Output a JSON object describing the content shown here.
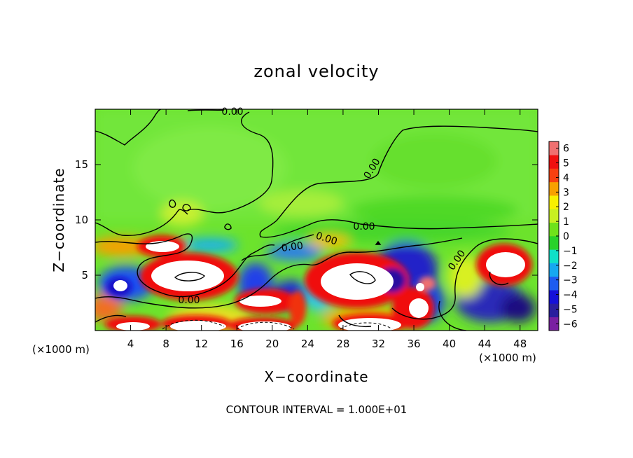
{
  "chart_data": {
    "type": "heatmap",
    "title": "zonal velocity",
    "xlabel": "X−coordinate",
    "ylabel": "Z−coordinate",
    "x_unit_label": "(×1000 m)",
    "x_ticks": [
      4,
      8,
      12,
      16,
      20,
      24,
      28,
      32,
      36,
      40,
      44,
      48
    ],
    "y_ticks": [
      5,
      10,
      15
    ],
    "xlim": [
      0,
      50
    ],
    "ylim": [
      0,
      20
    ],
    "colorbar": {
      "ticks": [
        "6",
        "5",
        "4",
        "3",
        "2",
        "1",
        "0",
        "−1",
        "−2",
        "−3",
        "−4",
        "−5",
        "−6"
      ],
      "range": [
        -6,
        6
      ],
      "colors": [
        "#7a1fa2",
        "#2a1e9e",
        "#1510d8",
        "#1e5cf0",
        "#16a8f0",
        "#0fe0c8",
        "#28d22a",
        "#6fe21a",
        "#c8f020",
        "#f8f000",
        "#f8a000",
        "#f84010",
        "#f01010",
        "#f07070"
      ]
    },
    "contour_labels": [
      "0.00",
      "0.00",
      "0.00",
      "0.00",
      "0.00",
      "0.00",
      "0.00"
    ],
    "footer": "CONTOUR INTERVAL = 1.000E+01"
  }
}
